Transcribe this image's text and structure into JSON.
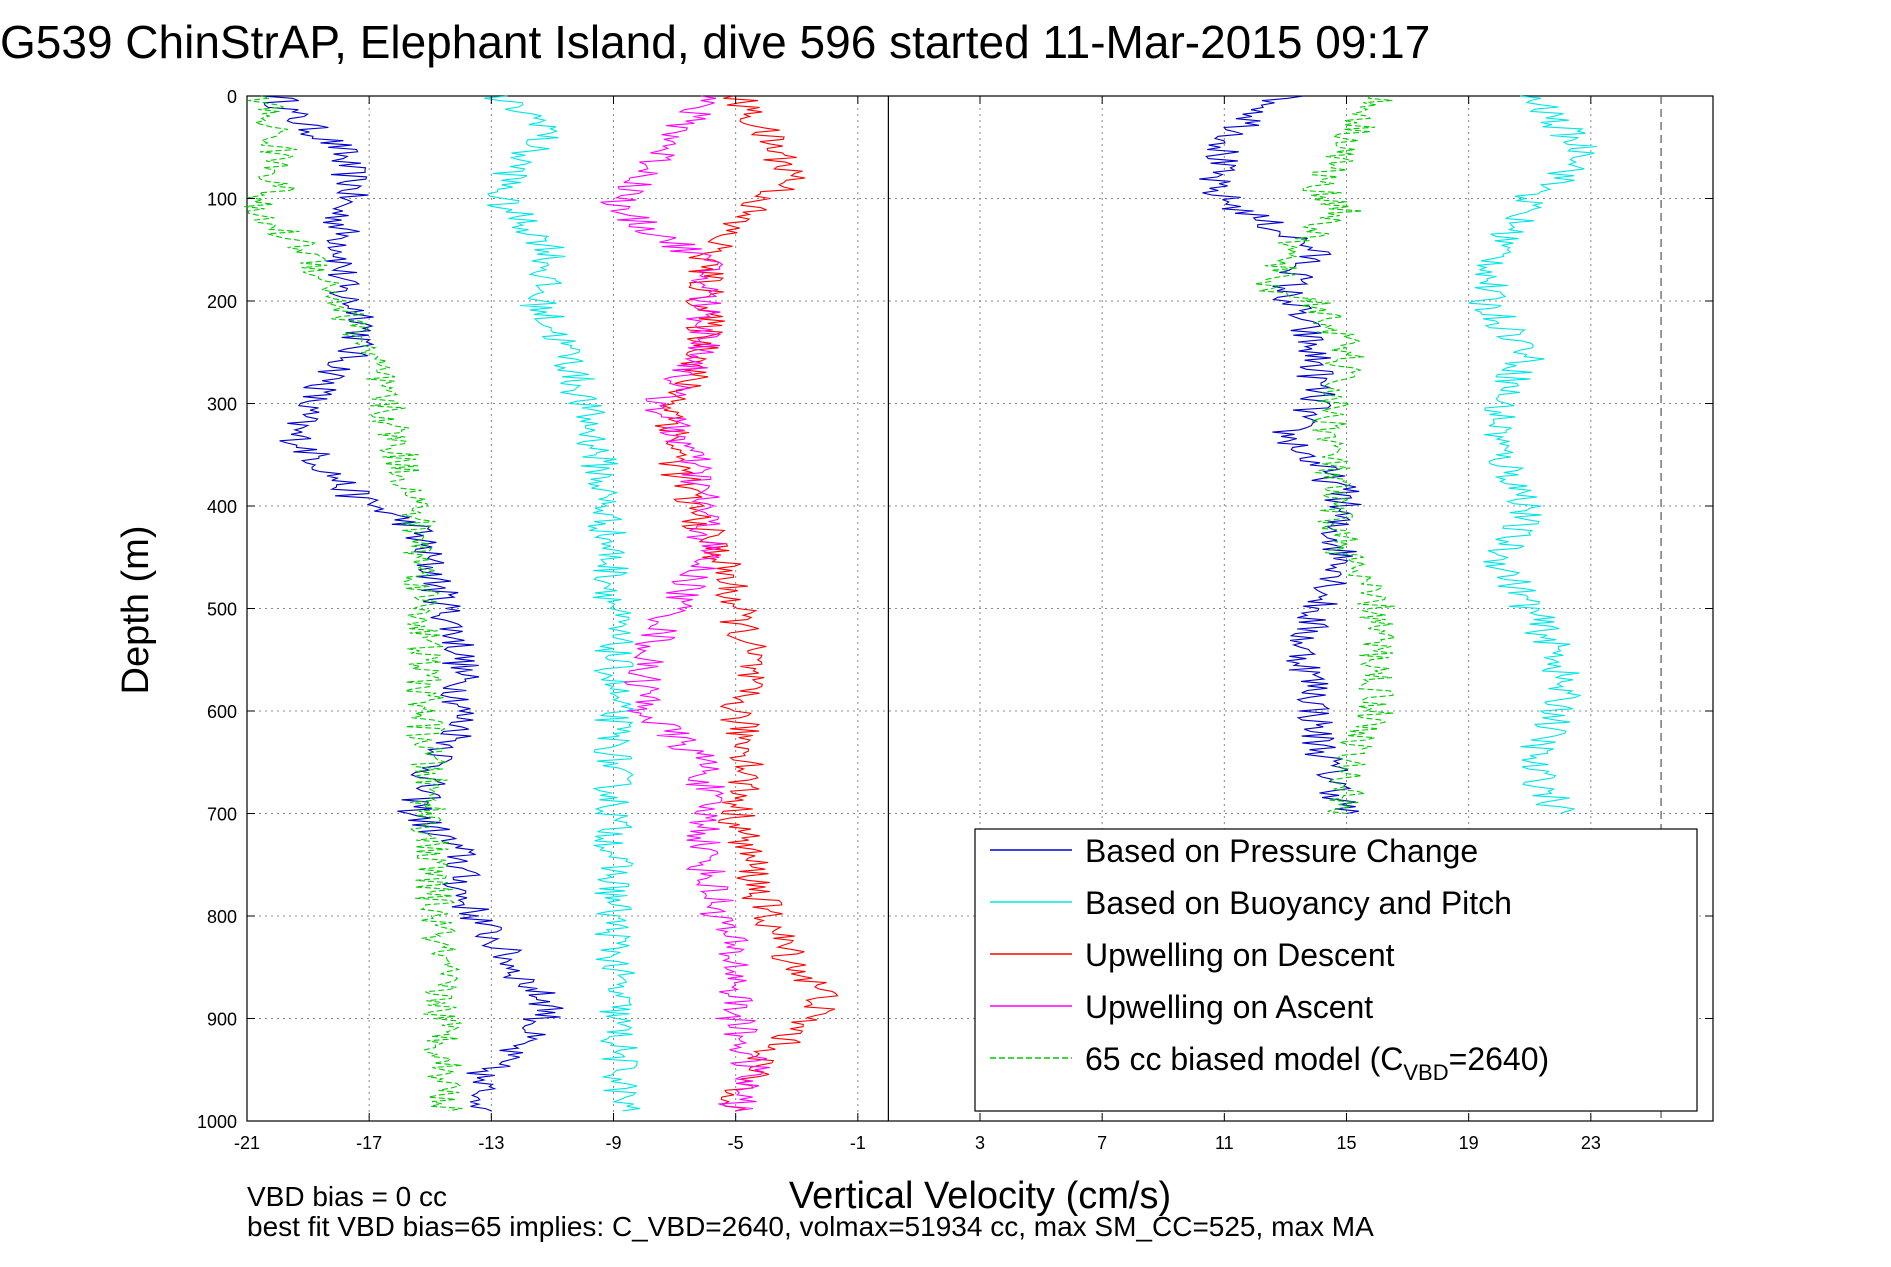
{
  "title": "G539 ChinStrAP, Elephant Island, dive 596 started 11-Mar-2015 09:17",
  "notes": {
    "line1": "VBD bias = 0 cc",
    "line2": "best fit VBD bias=65 implies: C_VBD=2640, volmax=51934 cc, max SM_CC=525, max MA"
  },
  "chart_data": {
    "type": "line",
    "title": "G539 ChinStrAP, Elephant Island, dive 596 started 11-Mar-2015 09:17",
    "xlabel": "Vertical Velocity (cm/s)",
    "ylabel": "Depth (m)",
    "xlim": [
      -21,
      27
    ],
    "ylim": [
      1000,
      0
    ],
    "y_reversed": true,
    "grid": true,
    "x_ticks": [
      -21,
      -17,
      -13,
      -9,
      -5,
      -1,
      3,
      7,
      11,
      15,
      19,
      23
    ],
    "y_ticks": [
      0,
      100,
      200,
      300,
      400,
      500,
      600,
      700,
      800,
      900,
      1000
    ],
    "reference_lines": [
      {
        "orientation": "vertical",
        "x": 0
      },
      {
        "orientation": "vertical",
        "x": 25.3,
        "style": "dashed"
      }
    ],
    "legend_position": "bottom-right",
    "legend": [
      {
        "label": "Based on Pressure Change",
        "color": "#0000cc",
        "style": "solid"
      },
      {
        "label": "Based on Buoyancy and Pitch",
        "color": "#00e6e6",
        "style": "solid"
      },
      {
        "label": "Upwelling on Descent",
        "color": "#ff0000",
        "style": "solid"
      },
      {
        "label": "Upwelling on Ascent",
        "color": "#ff00ff",
        "style": "solid"
      },
      {
        "label_main": "65 cc biased model (C",
        "label_sub": "VBD",
        "label_tail": "=2640)",
        "color": "#00cc00",
        "style": "dashed"
      }
    ],
    "series": [
      {
        "name": "Based on Pressure Change",
        "phase": "descent",
        "color": "#0000cc",
        "depth": [
          0,
          20,
          50,
          90,
          110,
          150,
          190,
          220,
          260,
          300,
          330,
          360,
          390,
          420,
          460,
          500,
          540,
          580,
          620,
          660,
          700,
          740,
          780,
          820,
          860,
          890,
          920,
          960,
          990
        ],
        "values": [
          -20,
          -19.5,
          -18,
          -17.5,
          -18,
          -17.8,
          -18,
          -17,
          -17.8,
          -19,
          -19.5,
          -18.5,
          -17.5,
          -15.5,
          -15,
          -14.5,
          -14,
          -14,
          -14,
          -15,
          -15.5,
          -14,
          -14,
          -13,
          -12,
          -11,
          -12,
          -13.5,
          -13
        ]
      },
      {
        "name": "Based on Pressure Change",
        "phase": "ascent",
        "color": "#0000cc",
        "depth": [
          0,
          20,
          50,
          90,
          110,
          150,
          190,
          220,
          260,
          300,
          330,
          360,
          390,
          420,
          460,
          500,
          540,
          580,
          620,
          660,
          700
        ],
        "values": [
          13,
          12,
          11,
          10.5,
          11.5,
          14,
          13,
          13.5,
          14,
          14,
          13,
          14,
          15,
          14.5,
          15,
          14,
          13.5,
          14,
          14,
          14.5,
          15
        ]
      },
      {
        "name": "Based on Buoyancy and Pitch",
        "phase": "descent",
        "color": "#00e6e6",
        "depth": [
          0,
          30,
          60,
          100,
          150,
          200,
          250,
          300,
          350,
          400,
          450,
          500,
          550,
          600,
          700,
          800,
          900,
          990
        ],
        "values": [
          -13,
          -11,
          -12,
          -12.8,
          -11,
          -11.5,
          -10.5,
          -10,
          -9.5,
          -9.3,
          -9.1,
          -9,
          -9,
          -9,
          -9,
          -9,
          -8.9,
          -8.7
        ]
      },
      {
        "name": "Based on Buoyancy and Pitch",
        "phase": "ascent",
        "color": "#00e6e6",
        "depth": [
          0,
          30,
          60,
          100,
          150,
          200,
          250,
          300,
          350,
          400,
          450,
          500,
          550,
          600,
          650,
          700
        ],
        "values": [
          21,
          22,
          23,
          21,
          20,
          19.5,
          21,
          20,
          20,
          21,
          20,
          21,
          22,
          22,
          21,
          22
        ]
      },
      {
        "name": "Upwelling on Descent",
        "color": "#ff0000",
        "depth": [
          0,
          40,
          80,
          120,
          160,
          200,
          250,
          300,
          350,
          400,
          450,
          500,
          550,
          600,
          650,
          700,
          750,
          800,
          850,
          880,
          910,
          950,
          990
        ],
        "values": [
          -5,
          -4,
          -3,
          -5,
          -6,
          -6,
          -6,
          -7,
          -7,
          -6.5,
          -5.5,
          -5,
          -4.5,
          -5,
          -4.5,
          -5,
          -4.5,
          -4,
          -3,
          -2,
          -3,
          -4.5,
          -5
        ]
      },
      {
        "name": "Upwelling on Ascent",
        "color": "#ff00ff",
        "depth": [
          0,
          40,
          80,
          110,
          160,
          200,
          250,
          300,
          350,
          400,
          450,
          500,
          550,
          600,
          650,
          700,
          750,
          800,
          850,
          900,
          950,
          990
        ],
        "values": [
          -6,
          -7,
          -8,
          -9,
          -6,
          -6,
          -6,
          -7.5,
          -6.5,
          -6,
          -6,
          -7,
          -8,
          -8,
          -6,
          -6,
          -6,
          -5.5,
          -5,
          -5,
          -4.5,
          -5
        ]
      },
      {
        "name": "65 cc biased model (C_VBD=2640)",
        "phase": "descent",
        "color": "#00cc00",
        "style": "dashed",
        "depth": [
          0,
          50,
          90,
          110,
          150,
          200,
          250,
          300,
          350,
          400,
          450,
          500,
          550,
          600,
          650,
          700,
          750,
          800,
          850,
          900,
          950,
          990
        ],
        "values": [
          -20.5,
          -20,
          -20,
          -21,
          -19,
          -18,
          -17,
          -16.5,
          -16,
          -15.5,
          -15.3,
          -15.2,
          -15.2,
          -15.2,
          -15.1,
          -15,
          -15,
          -14.8,
          -14.7,
          -14.6,
          -14.5,
          -14.4
        ]
      },
      {
        "name": "65 cc biased model (C_VBD=2640)",
        "phase": "ascent",
        "color": "#00cc00",
        "style": "dashed",
        "depth": [
          0,
          50,
          90,
          110,
          150,
          190,
          200,
          250,
          300,
          350,
          400,
          450,
          500,
          550,
          600,
          650,
          700
        ],
        "values": [
          16,
          15,
          14,
          15,
          13,
          12.5,
          14,
          15,
          14.5,
          14.5,
          14.5,
          15,
          16,
          16,
          16,
          15,
          15
        ]
      }
    ]
  }
}
